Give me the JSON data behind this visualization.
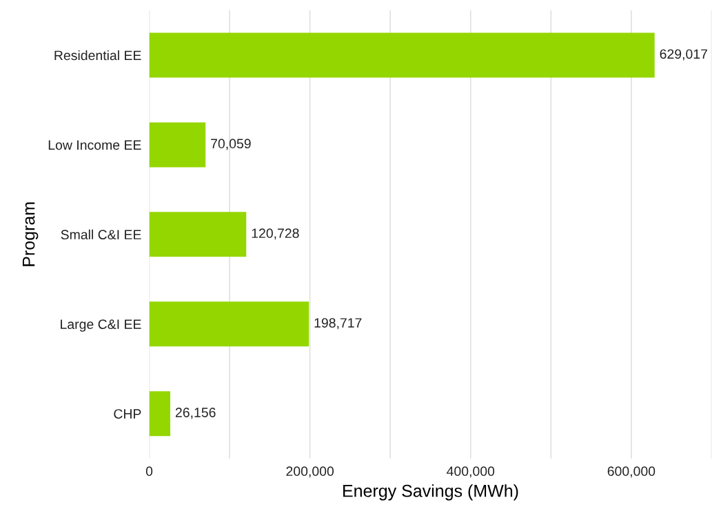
{
  "chart_data": {
    "type": "bar",
    "orientation": "horizontal",
    "xlabel": "Energy Savings (MWh)",
    "ylabel": "Program",
    "categories": [
      "Residential EE",
      "Low Income EE",
      "Small C&I EE",
      "Large C&I EE",
      "CHP"
    ],
    "values": [
      629017,
      70059,
      120728,
      198717,
      26156
    ],
    "color": "#94d600",
    "value_labels": [
      "629,017",
      "70,059",
      "120,728",
      "198,717",
      "26,156"
    ],
    "xlim": [
      0,
      700000
    ],
    "xticks": [
      {
        "value": 0,
        "label": "0"
      },
      {
        "value": 100000,
        "label": null
      },
      {
        "value": 200000,
        "label": "200,000"
      },
      {
        "value": 300000,
        "label": null
      },
      {
        "value": 400000,
        "label": "400,000"
      },
      {
        "value": 500000,
        "label": null
      },
      {
        "value": 600000,
        "label": "600,000"
      },
      {
        "value": 700000,
        "label": null
      }
    ],
    "grid": "x"
  }
}
